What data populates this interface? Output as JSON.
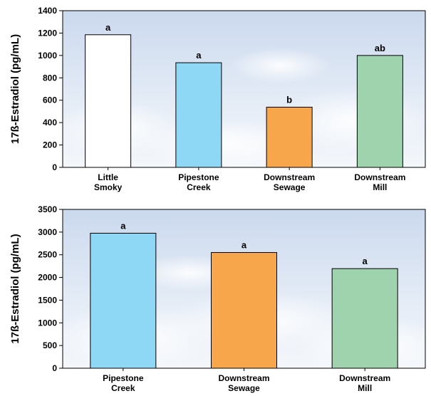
{
  "chart_data": [
    {
      "type": "bar",
      "categories": [
        "Little Smoky",
        "Pipestone Creek",
        "Downstream Sewage",
        "Downstream Mill"
      ],
      "category_lines": [
        [
          "Little",
          "Smoky"
        ],
        [
          "Pipestone",
          "Creek"
        ],
        [
          "Downstream",
          "Sewage"
        ],
        [
          "Downstream",
          "Mill"
        ]
      ],
      "values": [
        1185,
        935,
        538,
        1000
      ],
      "labels": [
        "a",
        "a",
        "b",
        "ab"
      ],
      "colors": [
        "#ffffff",
        "#8fd8f5",
        "#f7a64c",
        "#9fd3ad"
      ],
      "ylabel": "17ß-Estradiol (pg/mL)",
      "ylim": [
        0,
        1400
      ],
      "yticks": [
        "0",
        "200",
        "400",
        "600",
        "800",
        "1000",
        "1200",
        "1400"
      ]
    },
    {
      "type": "bar",
      "categories": [
        "Pipestone Creek",
        "Downstream Sewage",
        "Downstream Mill"
      ],
      "category_lines": [
        [
          "Pipestone",
          "Creek"
        ],
        [
          "Downstream",
          "Sewage"
        ],
        [
          "Downstream",
          "Mill"
        ]
      ],
      "values": [
        2975,
        2550,
        2195
      ],
      "labels": [
        "a",
        "a",
        "a"
      ],
      "colors": [
        "#8fd8f5",
        "#f7a64c",
        "#9fd3ad"
      ],
      "ylabel": "17ß-Estradiol (pg/mL)",
      "ylim": [
        0,
        3500
      ],
      "yticks": [
        "0",
        "500",
        "1000",
        "1500",
        "2000",
        "2500",
        "3000",
        "3500"
      ]
    }
  ]
}
